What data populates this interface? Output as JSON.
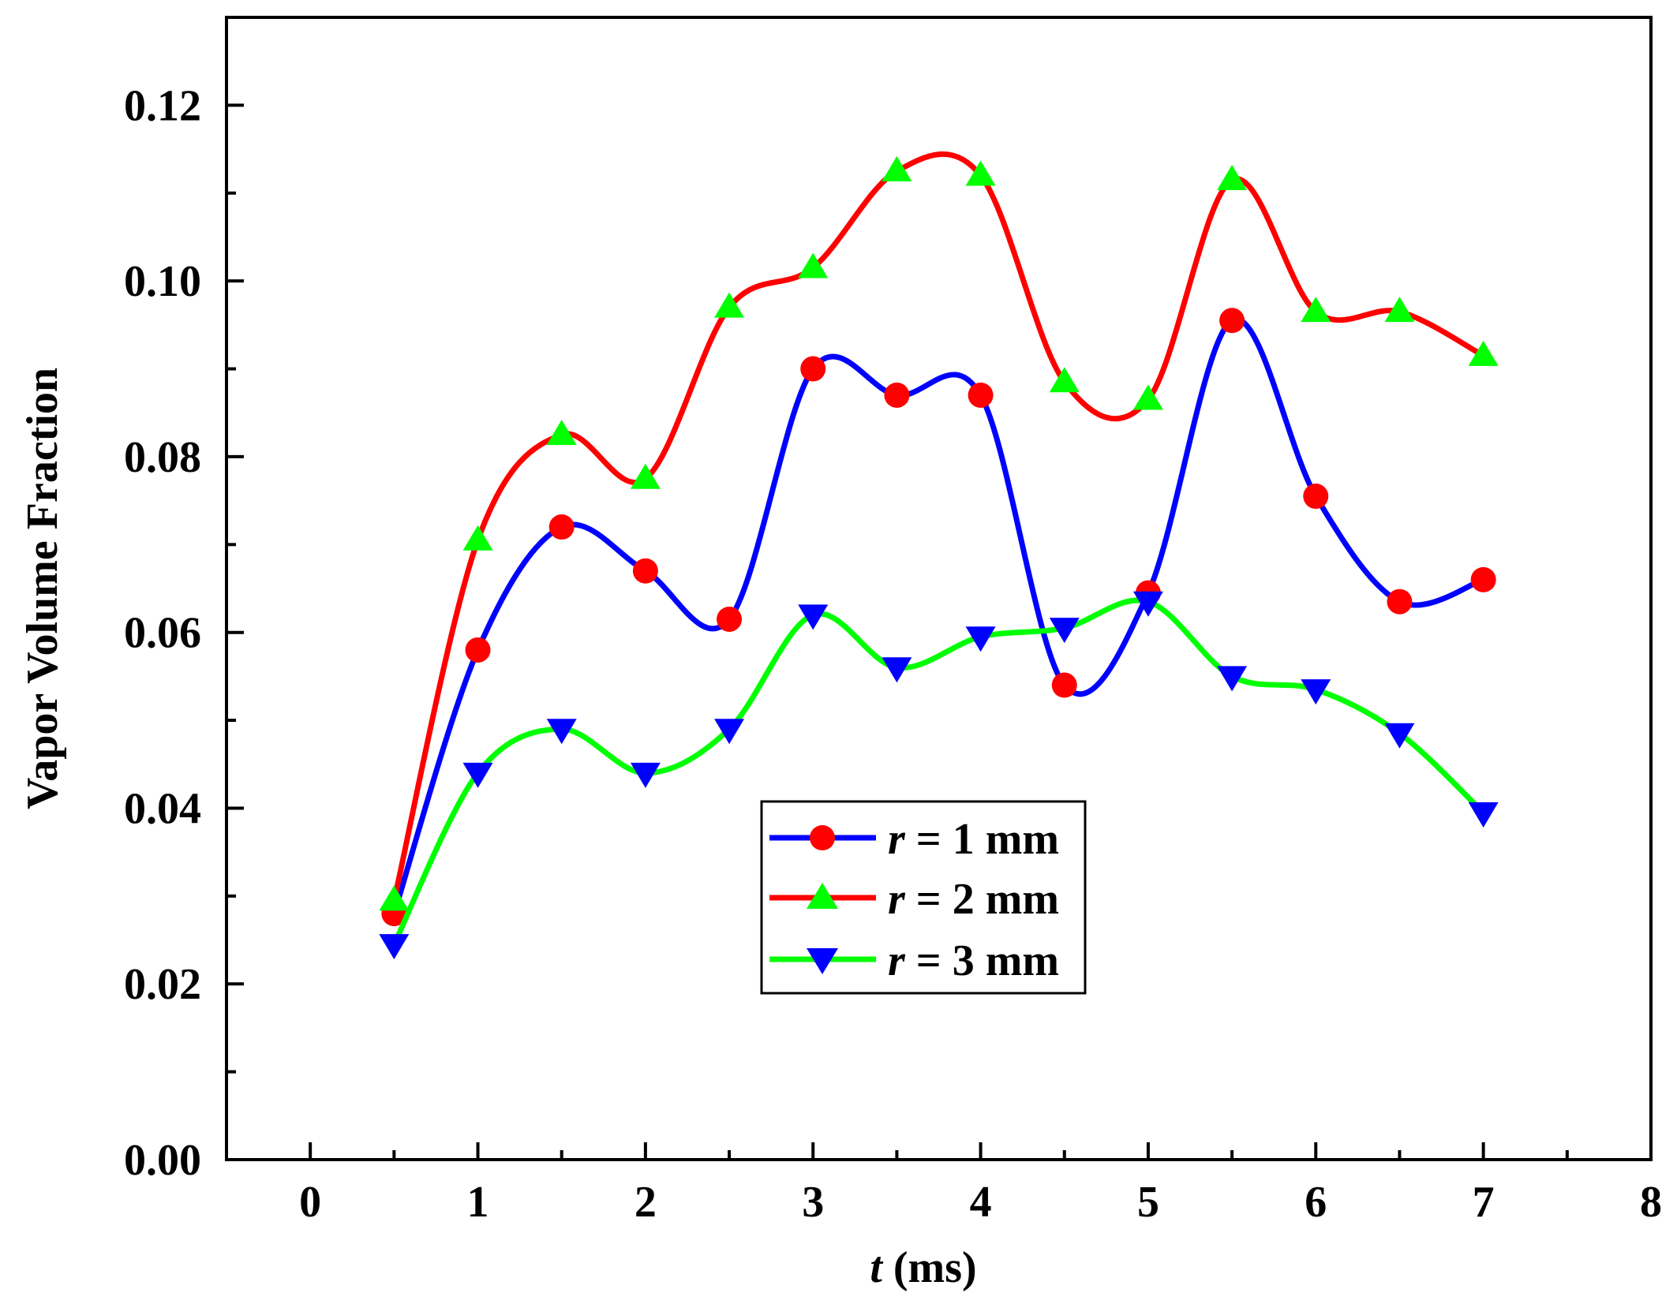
{
  "chart_data": {
    "type": "line",
    "title": "",
    "xlabel_var": "t",
    "xlabel_unit": " (ms)",
    "ylabel": "Vapor Volume Fraction",
    "xlim": [
      -0.5,
      8
    ],
    "ylim": [
      0,
      0.13
    ],
    "x_ticks": [
      0,
      1,
      2,
      3,
      4,
      5,
      6,
      7,
      8
    ],
    "x_tick_labels": [
      "0",
      "1",
      "2",
      "3",
      "4",
      "5",
      "6",
      "7",
      "8"
    ],
    "x_minor_ticks": [
      0.5,
      1.5,
      2.5,
      3.5,
      4.5,
      5.5,
      6.5,
      7.5
    ],
    "y_ticks": [
      0,
      0.02,
      0.04,
      0.06,
      0.08,
      0.1,
      0.12
    ],
    "y_tick_labels": [
      "0.00",
      "0.02",
      "0.04",
      "0.06",
      "0.08",
      "0.10",
      "0.12"
    ],
    "y_minor_ticks": [
      0.01,
      0.03,
      0.05,
      0.07,
      0.09,
      0.11
    ],
    "grid": false,
    "legend_position": "center",
    "x": [
      0.5,
      1,
      1.5,
      2,
      2.5,
      3,
      3.5,
      4,
      4.5,
      5,
      5.5,
      6,
      6.5,
      7
    ],
    "series": [
      {
        "name_var": "r",
        "name_rest": " = 1 mm",
        "line_color": "#0000ff",
        "marker_color": "#ff0000",
        "marker": "circle",
        "values": [
          0.028,
          0.058,
          0.072,
          0.067,
          0.0615,
          0.09,
          0.087,
          0.087,
          0.054,
          0.0645,
          0.0955,
          0.0755,
          0.0635,
          0.066
        ]
      },
      {
        "name_var": "r",
        "name_rest": " = 2 mm",
        "line_color": "#ff0000",
        "marker_color": "#00ff00",
        "marker": "triangle-up",
        "values": [
          0.0295,
          0.0705,
          0.0825,
          0.0775,
          0.097,
          0.1015,
          0.1125,
          0.112,
          0.0885,
          0.0865,
          0.1115,
          0.0965,
          0.0965,
          0.0915
        ]
      },
      {
        "name_var": "r",
        "name_rest": " = 3 mm",
        "line_color": "#00ff00",
        "marker_color": "#0000ff",
        "marker": "triangle-down",
        "values": [
          0.0245,
          0.044,
          0.049,
          0.044,
          0.049,
          0.062,
          0.056,
          0.0595,
          0.0605,
          0.0635,
          0.055,
          0.0535,
          0.0485,
          0.0395
        ]
      }
    ]
  }
}
